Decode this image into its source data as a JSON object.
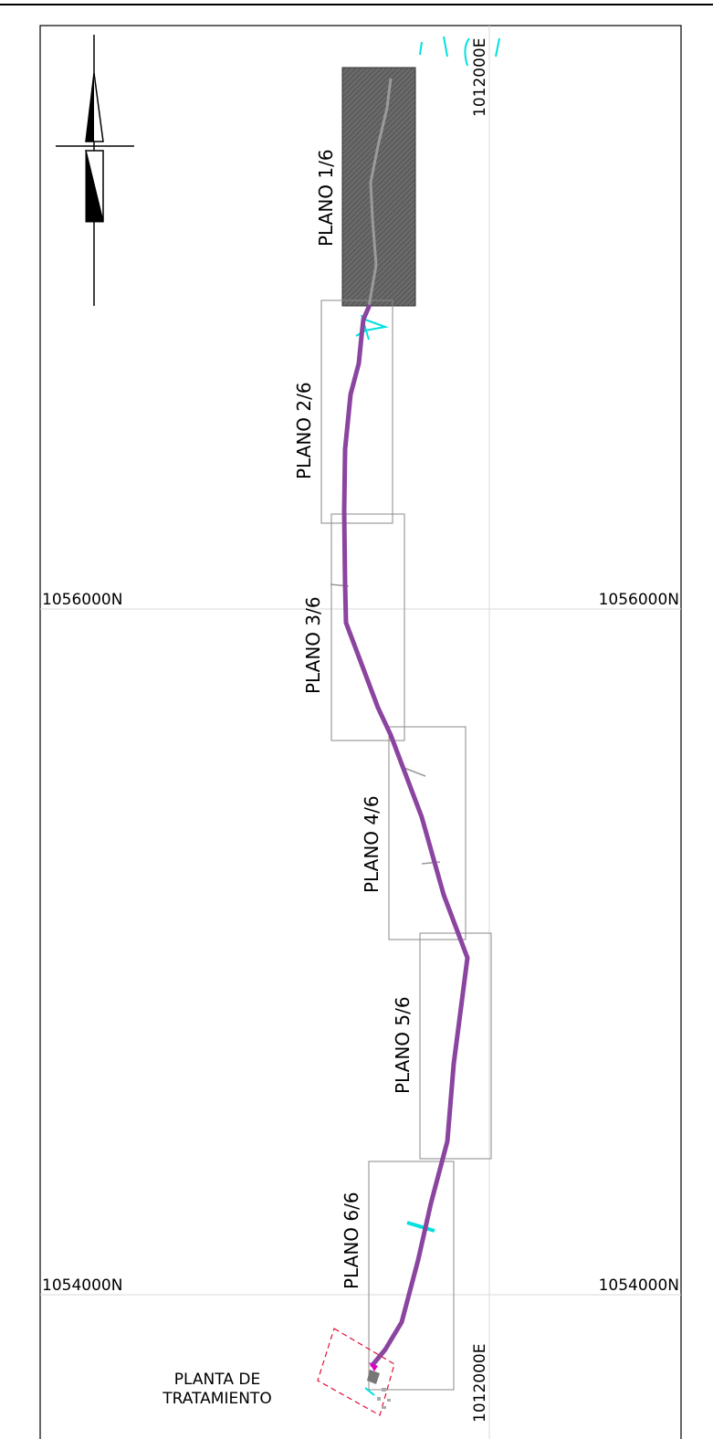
{
  "sheets": [
    {
      "label": "PLANO  1/6",
      "shaded": true
    },
    {
      "label": "PLANO  2/6",
      "shaded": false
    },
    {
      "label": "PLANO  3/6",
      "shaded": false
    },
    {
      "label": "PLANO  4/6",
      "shaded": false
    },
    {
      "label": "PLANO  5/6",
      "shaded": false
    },
    {
      "label": "PLANO  6/6",
      "shaded": false
    }
  ],
  "grid": {
    "easting_top": "1012000E",
    "easting_bottom": "1012000E",
    "northing_upper_left": "1056000N",
    "northing_upper_right": "1056000N",
    "northing_lower_left": "1054000N",
    "northing_lower_right": "1054000N"
  },
  "plant": {
    "line1": "PLANTA  DE",
    "line2": "TRATAMIENTO"
  },
  "north_arrow": {
    "icon": "north-arrow-icon"
  },
  "colors": {
    "pipeline": "#8b44a0",
    "sheet_frame": "#8a8a8a",
    "shaded_sheet": "#5a5a5a",
    "stream": "#00e0e0",
    "plant_outline": "#e0103a",
    "plant_marker": "#e000c0",
    "grid": "#d8d8d8"
  }
}
